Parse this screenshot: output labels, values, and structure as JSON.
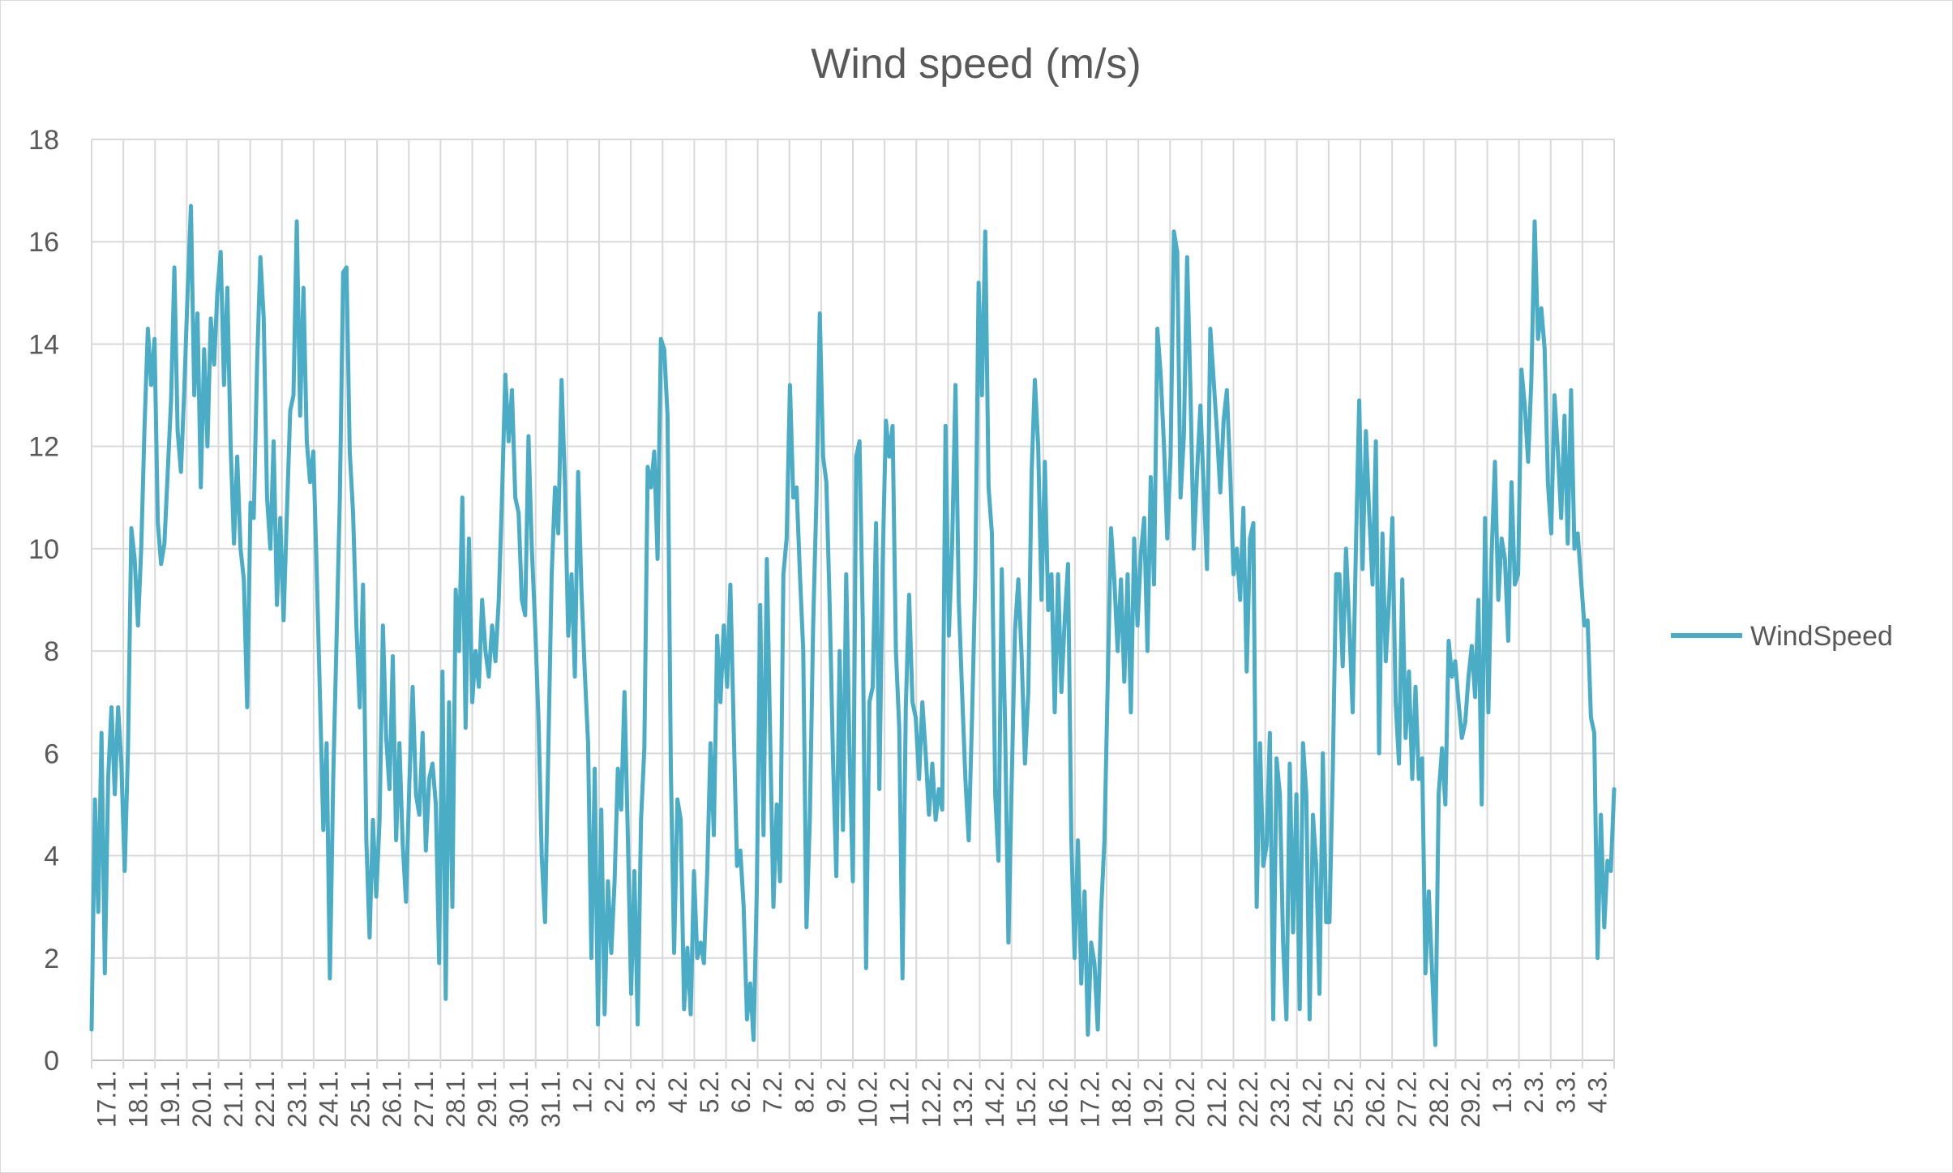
{
  "chart_data": {
    "type": "line",
    "title": "Wind speed (m/s)",
    "xlabel": "",
    "ylabel": "",
    "ylim": [
      0,
      18
    ],
    "yticks": [
      0,
      2,
      4,
      6,
      8,
      10,
      12,
      14,
      16,
      18
    ],
    "grid": true,
    "legend_position": "right",
    "x_labels": [
      "17.1.",
      "18.1.",
      "19.1.",
      "20.1.",
      "21.1.",
      "22.1.",
      "23.1.",
      "24.1.",
      "25.1.",
      "26.1.",
      "27.1.",
      "28.1.",
      "29.1.",
      "30.1.",
      "31.1.",
      "1.2.",
      "2.2.",
      "3.2.",
      "4.2.",
      "5.2.",
      "6.2.",
      "7.2.",
      "8.2.",
      "9.2.",
      "10.2.",
      "11.2.",
      "12.2.",
      "13.2.",
      "14.2.",
      "15.2.",
      "16.2.",
      "17.2.",
      "18.2.",
      "19.2.",
      "20.2.",
      "21.2.",
      "22.2.",
      "23.2.",
      "24.2.",
      "25.2.",
      "26.2.",
      "27.2.",
      "28.2.",
      "29.2.",
      "1.3.",
      "2.3.",
      "3.3.",
      "4.3."
    ],
    "series": [
      {
        "name": "WindSpeed",
        "color": "#4bacc6",
        "values": [
          0.6,
          5.1,
          2.9,
          6.4,
          1.7,
          5.5,
          6.9,
          5.2,
          6.9,
          5.8,
          3.7,
          6.1,
          10.4,
          9.8,
          8.5,
          10.0,
          12.4,
          14.3,
          13.2,
          14.1,
          10.5,
          9.7,
          10.1,
          11.5,
          12.9,
          15.5,
          12.3,
          11.5,
          13.1,
          15.0,
          16.7,
          13.0,
          14.6,
          11.2,
          13.9,
          12.0,
          14.5,
          13.6,
          15.0,
          15.8,
          13.2,
          15.1,
          12.0,
          10.1,
          11.8,
          10.0,
          9.4,
          6.9,
          10.9,
          10.6,
          13.6,
          15.7,
          14.5,
          11.0,
          10.0,
          12.1,
          8.9,
          10.6,
          8.6,
          10.7,
          12.7,
          13.0,
          16.4,
          12.6,
          15.1,
          12.1,
          11.3,
          11.9,
          9.6,
          7.1,
          4.5,
          6.2,
          1.6,
          5.5,
          8.2,
          11.0,
          15.4,
          15.5,
          11.9,
          10.7,
          8.5,
          6.9,
          9.3,
          4.3,
          2.4,
          4.7,
          3.2,
          4.7,
          8.5,
          6.3,
          5.3,
          7.9,
          4.3,
          6.2,
          4.2,
          3.1,
          5.4,
          7.3,
          5.2,
          4.8,
          6.4,
          4.1,
          5.5,
          5.8,
          5.0,
          1.9,
          7.6,
          1.2,
          7.0,
          3.0,
          9.2,
          8.0,
          11.0,
          6.5,
          10.2,
          7.0,
          8.0,
          7.3,
          9.0,
          8.0,
          7.5,
          8.5,
          7.8,
          9.0,
          11.0,
          13.4,
          12.1,
          13.1,
          11.0,
          10.7,
          9.0,
          8.7,
          12.2,
          10.0,
          8.5,
          6.7,
          4.0,
          2.7,
          6.1,
          9.5,
          11.2,
          10.3,
          13.3,
          11.3,
          8.3,
          9.5,
          7.5,
          11.5,
          9.2,
          7.6,
          6.2,
          2.0,
          5.7,
          0.7,
          4.9,
          0.9,
          3.5,
          2.1,
          3.5,
          5.7,
          4.9,
          7.2,
          4.4,
          1.3,
          3.7,
          0.7,
          4.7,
          6.1,
          11.6,
          11.2,
          11.9,
          9.8,
          14.1,
          13.9,
          12.6,
          5.7,
          2.1,
          5.1,
          4.7,
          1.0,
          2.2,
          0.9,
          3.7,
          2.0,
          2.3,
          1.9,
          3.7,
          6.2,
          4.4,
          8.3,
          7.0,
          8.5,
          7.3,
          9.3,
          6.5,
          3.8,
          4.1,
          3.0,
          0.8,
          1.5,
          0.4,
          3.4,
          8.9,
          4.4,
          9.8,
          6.4,
          3.0,
          5.0,
          3.5,
          9.5,
          10.2,
          13.2,
          11.0,
          11.2,
          9.5,
          8.0,
          2.6,
          4.7,
          8.5,
          11.0,
          14.6,
          11.8,
          11.3,
          8.9,
          5.9,
          3.6,
          8.0,
          4.5,
          9.5,
          6.0,
          3.5,
          11.8,
          12.1,
          8.6,
          1.8,
          7.0,
          7.3,
          10.5,
          5.3,
          9.7,
          12.5,
          11.8,
          12.4,
          8.0,
          6.5,
          1.6,
          6.9,
          9.1,
          7.0,
          6.7,
          5.5,
          7.0,
          6.0,
          4.8,
          5.8,
          4.7,
          5.3,
          4.9,
          12.4,
          8.3,
          10.1,
          13.2,
          9.0,
          7.2,
          5.5,
          4.3,
          6.7,
          9.5,
          15.2,
          13.0,
          16.2,
          11.2,
          10.3,
          5.2,
          3.9,
          9.6,
          6.5,
          2.3,
          5.5,
          8.4,
          9.4,
          7.9,
          5.8,
          7.2,
          11.5,
          13.3,
          12.0,
          9.0,
          11.7,
          8.8,
          9.5,
          6.8,
          9.5,
          7.2,
          8.6,
          9.7,
          4.3,
          2.0,
          4.3,
          1.5,
          3.3,
          0.5,
          2.3,
          1.9,
          0.6,
          2.9,
          4.3,
          7.4,
          10.4,
          9.4,
          8.0,
          9.4,
          7.4,
          9.5,
          6.8,
          10.2,
          8.5,
          9.9,
          10.6,
          8.0,
          11.4,
          9.3,
          14.3,
          13.4,
          12.0,
          10.2,
          11.8,
          16.2,
          15.8,
          11.0,
          12.2,
          15.7,
          13.1,
          10.0,
          11.5,
          12.8,
          11.2,
          9.6,
          14.3,
          13.3,
          12.3,
          11.1,
          12.5,
          13.1,
          11.5,
          9.5,
          10.0,
          9.0,
          10.8,
          7.6,
          10.2,
          10.5,
          3.0,
          6.2,
          3.8,
          4.2,
          6.4,
          0.8,
          5.9,
          5.2,
          2.3,
          0.8,
          5.8,
          2.5,
          5.2,
          1.0,
          6.2,
          5.2,
          0.8,
          4.8,
          3.8,
          1.3,
          6.0,
          2.7,
          2.7,
          5.7,
          9.5,
          9.5,
          7.7,
          10.0,
          8.5,
          6.8,
          10.1,
          12.9,
          9.6,
          12.3,
          10.7,
          9.3,
          12.1,
          6.0,
          10.3,
          7.8,
          9.0,
          10.6,
          7.0,
          5.8,
          9.4,
          6.3,
          7.6,
          5.5,
          7.3,
          5.5,
          5.9,
          1.7,
          3.3,
          1.7,
          0.3,
          5.2,
          6.1,
          5.0,
          8.2,
          7.5,
          7.8,
          7.0,
          6.3,
          6.6,
          7.5,
          8.1,
          7.1,
          9.0,
          5.0,
          10.6,
          6.8,
          9.9,
          11.7,
          9.0,
          10.2,
          9.8,
          8.2,
          11.3,
          9.3,
          9.5,
          13.5,
          12.8,
          11.7,
          13.3,
          16.4,
          14.1,
          14.7,
          13.9,
          11.3,
          10.3,
          13.0,
          11.9,
          10.6,
          12.6,
          10.1,
          13.1,
          10.0,
          10.3,
          9.4,
          8.5,
          8.6,
          6.7,
          6.4,
          2.0,
          4.8,
          2.6,
          3.9,
          3.7,
          5.3
        ]
      }
    ]
  }
}
